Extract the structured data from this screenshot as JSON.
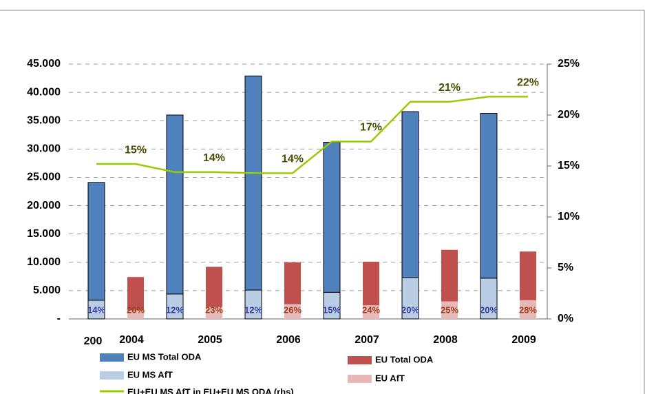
{
  "chart_data": {
    "type": "bar",
    "categories": [
      "2004",
      "2005",
      "2006",
      "2007",
      "2008",
      "2009"
    ],
    "x_stub_label": "200",
    "series": [
      {
        "name": "EU MS Total ODA",
        "color": "#4f81bd",
        "group": 0,
        "values": [
          20800,
          31600,
          37800,
          26500,
          29300,
          29100
        ]
      },
      {
        "name": "EU MS AfT",
        "color": "#b9cde5",
        "group": 0,
        "stack_base": true,
        "values": [
          3300,
          4400,
          5100,
          4700,
          7300,
          7200
        ]
      },
      {
        "name": "EU Total ODA",
        "color": "#c0504d",
        "group": 1,
        "values": [
          5900,
          7100,
          7400,
          7700,
          9100,
          8600
        ]
      },
      {
        "name": "EU AfT",
        "color": "#e6b9b8",
        "group": 1,
        "stack_base": true,
        "values": [
          1500,
          2100,
          2600,
          2400,
          3100,
          3300
        ]
      }
    ],
    "share_labels": [
      {
        "color": "#3a3aa0",
        "group": 0,
        "values": [
          14,
          12,
          12,
          15,
          20,
          20
        ],
        "value_labels": [
          "14%",
          "12%",
          "12%",
          "15%",
          "20%",
          "20%"
        ]
      },
      {
        "color": "#a0401a",
        "group": 1,
        "values": [
          20,
          23,
          26,
          24,
          25,
          28
        ],
        "value_labels": [
          "20%",
          "23%",
          "26%",
          "24%",
          "25%",
          "28%"
        ]
      }
    ],
    "line": {
      "name": "EU+EU MS AfT in EU+EU MS ODA (rhs)",
      "color": "#99cc00",
      "axis": "y2",
      "values": [
        15.2,
        15.2,
        14.4,
        14.4,
        14.3,
        14.3,
        17.4,
        17.4,
        21.3,
        21.3,
        21.8,
        21.8
      ],
      "value_labels": [
        null,
        "15%",
        null,
        "14%",
        null,
        "14%",
        null,
        "17%",
        null,
        "21%",
        null,
        "22%"
      ]
    },
    "ylim": [
      0,
      45000
    ],
    "yticks": [
      {
        "value": 0,
        "label": "-"
      },
      {
        "value": 5000,
        "label": "5.000"
      },
      {
        "value": 10000,
        "label": "10.000"
      },
      {
        "value": 15000,
        "label": "15.000"
      },
      {
        "value": 20000,
        "label": "20.000"
      },
      {
        "value": 25000,
        "label": "25.000"
      },
      {
        "value": 30000,
        "label": "30.000"
      },
      {
        "value": 35000,
        "label": "35.000"
      },
      {
        "value": 40000,
        "label": "40.000"
      },
      {
        "value": 45000,
        "label": "45.000"
      }
    ],
    "y2lim": [
      0,
      25
    ],
    "y2ticks": [
      {
        "value": 0,
        "label": "0%"
      },
      {
        "value": 5,
        "label": "5%"
      },
      {
        "value": 10,
        "label": "10%"
      },
      {
        "value": 15,
        "label": "15%"
      },
      {
        "value": 20,
        "label": "20%"
      },
      {
        "value": 25,
        "label": "25%"
      }
    ],
    "grid": true
  }
}
